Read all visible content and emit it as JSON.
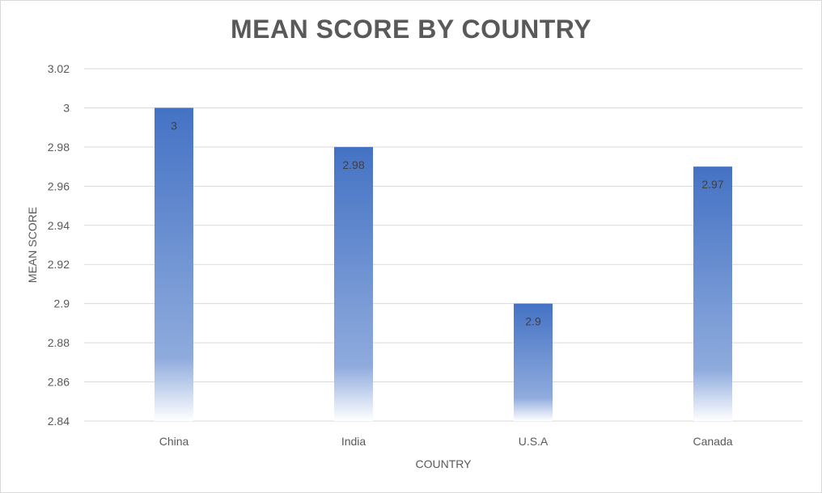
{
  "chart_data": {
    "type": "bar",
    "title": "MEAN SCORE BY COUNTRY",
    "xlabel": "COUNTRY",
    "ylabel": "MEAN SCORE",
    "categories": [
      "China",
      "India",
      "U.S.A",
      "Canada"
    ],
    "values": [
      3,
      2.98,
      2.9,
      2.97
    ],
    "data_labels": [
      "3",
      "2.98",
      "2.9",
      "2.97"
    ],
    "ylim": [
      2.84,
      3.02
    ],
    "yticks": [
      2.84,
      2.86,
      2.88,
      2.9,
      2.92,
      2.94,
      2.96,
      2.98,
      3,
      3.02
    ],
    "ytick_labels": [
      "2.84",
      "2.86",
      "2.88",
      "2.9",
      "2.92",
      "2.94",
      "2.96",
      "2.98",
      "3",
      "3.02"
    ],
    "grid": true,
    "legend": "none",
    "colors": {
      "bar_top": "#4472c4",
      "bar_bottom": "#ffffff",
      "gridline": "#d9d9d9",
      "text": "#595959"
    }
  }
}
